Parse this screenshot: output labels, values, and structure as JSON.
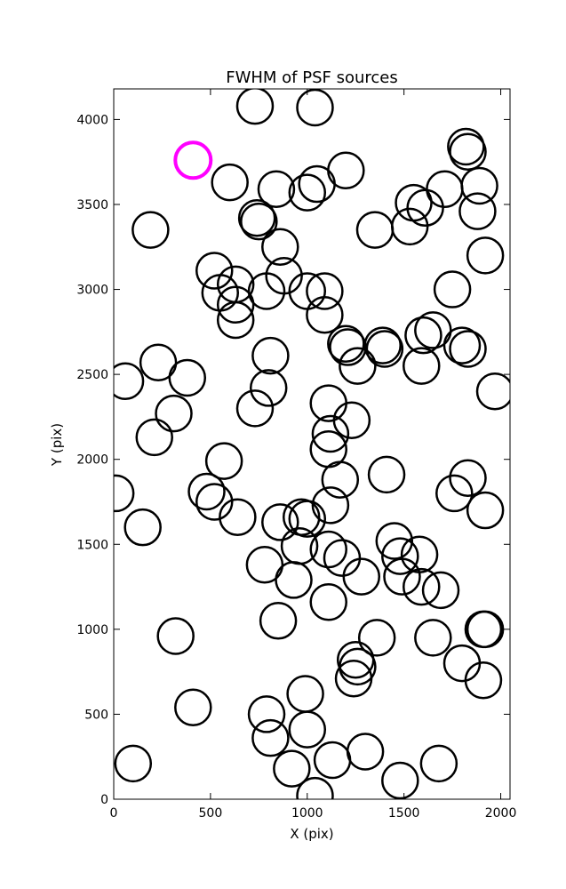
{
  "chart_data": {
    "type": "scatter",
    "title": "FWHM of PSF sources",
    "xlabel": "X (pix)",
    "ylabel": "Y (pix)",
    "xlim": [
      0,
      2048
    ],
    "ylim": [
      0,
      4180
    ],
    "xticks": [
      0,
      500,
      1000,
      1500,
      2000
    ],
    "yticks": [
      0,
      500,
      1000,
      1500,
      2000,
      2500,
      3000,
      3500,
      4000
    ],
    "grid": false,
    "marker": "open-circle",
    "series": [
      {
        "color": "#000000",
        "points": [
          [
            730,
            4080
          ],
          [
            1040,
            4070
          ],
          [
            600,
            3630
          ],
          [
            840,
            3590
          ],
          [
            1000,
            3570
          ],
          [
            1050,
            3620
          ],
          [
            1200,
            3700
          ],
          [
            740,
            3420
          ],
          [
            750,
            3400
          ],
          [
            190,
            3350
          ],
          [
            1350,
            3350
          ],
          [
            1530,
            3370
          ],
          [
            1550,
            3510
          ],
          [
            1610,
            3480
          ],
          [
            1710,
            3590
          ],
          [
            1890,
            3610
          ],
          [
            1880,
            3460
          ],
          [
            1820,
            3840
          ],
          [
            1830,
            3810
          ],
          [
            1920,
            3200
          ],
          [
            860,
            3250
          ],
          [
            520,
            3110
          ],
          [
            550,
            2980
          ],
          [
            630,
            3030
          ],
          [
            630,
            2910
          ],
          [
            630,
            2820
          ],
          [
            790,
            2990
          ],
          [
            880,
            3080
          ],
          [
            1000,
            2990
          ],
          [
            1090,
            2990
          ],
          [
            1090,
            2850
          ],
          [
            1750,
            3000
          ],
          [
            1200,
            2680
          ],
          [
            1210,
            2660
          ],
          [
            1260,
            2550
          ],
          [
            1390,
            2670
          ],
          [
            1400,
            2650
          ],
          [
            1600,
            2730
          ],
          [
            1650,
            2760
          ],
          [
            1590,
            2550
          ],
          [
            1800,
            2670
          ],
          [
            1830,
            2650
          ],
          [
            1970,
            2400
          ],
          [
            60,
            2460
          ],
          [
            230,
            2570
          ],
          [
            380,
            2480
          ],
          [
            310,
            2270
          ],
          [
            210,
            2130
          ],
          [
            730,
            2300
          ],
          [
            810,
            2610
          ],
          [
            800,
            2420
          ],
          [
            1110,
            2330
          ],
          [
            1230,
            2230
          ],
          [
            1120,
            2150
          ],
          [
            1110,
            2060
          ],
          [
            1170,
            1880
          ],
          [
            1410,
            1910
          ],
          [
            1760,
            1800
          ],
          [
            1830,
            1890
          ],
          [
            1920,
            1700
          ],
          [
            570,
            1990
          ],
          [
            480,
            1810
          ],
          [
            520,
            1750
          ],
          [
            640,
            1660
          ],
          [
            10,
            1800
          ],
          [
            150,
            1600
          ],
          [
            860,
            1630
          ],
          [
            970,
            1660
          ],
          [
            1000,
            1650
          ],
          [
            1120,
            1730
          ],
          [
            960,
            1490
          ],
          [
            1110,
            1470
          ],
          [
            1180,
            1420
          ],
          [
            1450,
            1520
          ],
          [
            1480,
            1430
          ],
          [
            1580,
            1440
          ],
          [
            1490,
            1310
          ],
          [
            1590,
            1250
          ],
          [
            1690,
            1230
          ],
          [
            1280,
            1310
          ],
          [
            780,
            1380
          ],
          [
            930,
            1290
          ],
          [
            850,
            1050
          ],
          [
            1110,
            1160
          ],
          [
            320,
            960
          ],
          [
            410,
            540
          ],
          [
            1360,
            950
          ],
          [
            1650,
            950
          ],
          [
            1910,
            1000
          ],
          [
            1920,
            1000
          ],
          [
            1800,
            800
          ],
          [
            1910,
            700
          ],
          [
            1250,
            820
          ],
          [
            1260,
            780
          ],
          [
            1240,
            710
          ],
          [
            990,
            620
          ],
          [
            790,
            500
          ],
          [
            810,
            360
          ],
          [
            1000,
            410
          ],
          [
            920,
            180
          ],
          [
            1130,
            230
          ],
          [
            1300,
            280
          ],
          [
            1480,
            110
          ],
          [
            1680,
            210
          ],
          [
            100,
            210
          ],
          [
            1040,
            20
          ]
        ]
      },
      {
        "color": "#ff00ff",
        "points": [
          [
            410,
            3760
          ]
        ]
      }
    ]
  }
}
